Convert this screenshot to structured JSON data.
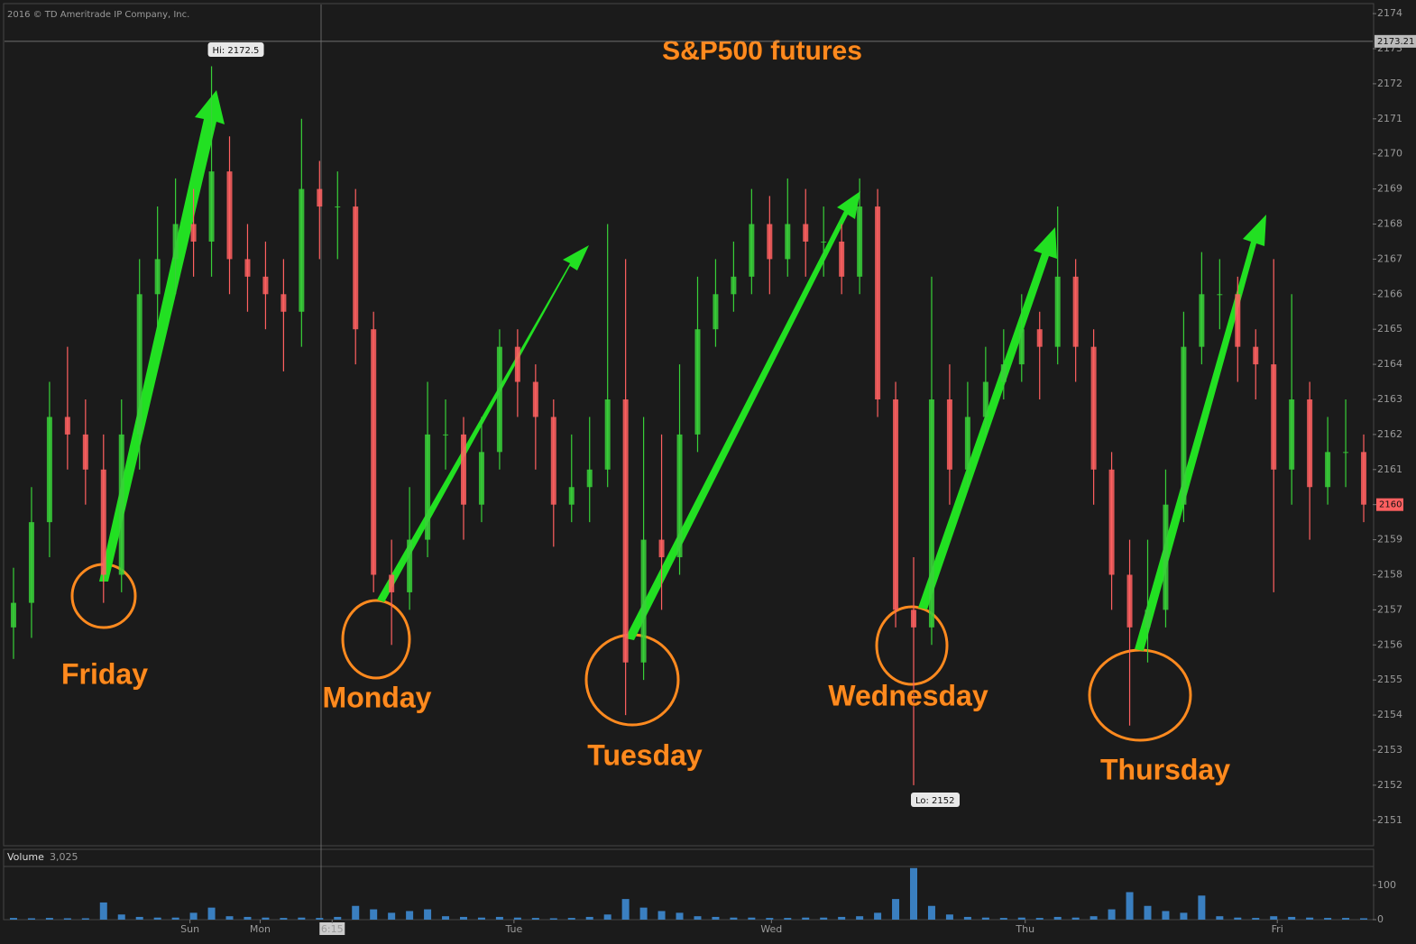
{
  "chart_data": {
    "type": "candlestick",
    "title": "S&P500 futures",
    "copyright": "2016 © TD Ameritrade IP Company, Inc.",
    "open": [
      2156.5,
      2157.2,
      2159.5,
      2162.5,
      2162.0,
      2161.0,
      2158.0,
      2162.0,
      2166.0,
      2167.0,
      2168.0,
      2167.5,
      2169.5,
      2167.0,
      2166.5,
      2166.0,
      2165.5,
      2169.0,
      2168.5,
      2168.5,
      2165.0,
      2158.0,
      2157.5,
      2159.0,
      2162.0,
      2162.0,
      2160.0,
      2161.5,
      2164.5,
      2163.5,
      2162.5,
      2160.0,
      2160.5,
      2161.0,
      2163.0,
      2155.5,
      2159.0,
      2158.5,
      2162.0,
      2165.0,
      2166.0,
      2166.5,
      2168.0,
      2167.0,
      2168.0,
      2167.5,
      2167.5,
      2166.5,
      2168.5,
      2163.0,
      2157.0,
      2156.5,
      2163.0,
      2161.0,
      2162.5,
      2163.5,
      2164.0,
      2165.0,
      2164.5,
      2166.5,
      2164.5,
      2161.0,
      2158.0,
      2156.5,
      2157.0,
      2160.0,
      2164.5,
      2166.0,
      2166.0,
      2164.5,
      2164.0,
      2161.0,
      2163.0,
      2160.5,
      2161.5,
      2161.5
    ],
    "high": [
      2158.2,
      2160.5,
      2163.5,
      2164.5,
      2163,
      2162,
      2163,
      2167,
      2168.5,
      2169.3,
      2169,
      2172.5,
      2170.5,
      2168,
      2167.5,
      2167,
      2171,
      2169.8,
      2169.5,
      2169,
      2165.5,
      2159,
      2160.5,
      2163.5,
      2163,
      2162.5,
      2162.5,
      2165,
      2165,
      2164,
      2163,
      2162,
      2162.5,
      2168,
      2167,
      2162.5,
      2162,
      2164,
      2166.5,
      2167,
      2167.5,
      2169,
      2168.8,
      2169.3,
      2169,
      2168.5,
      2168,
      2169.3,
      2169,
      2163.5,
      2158.5,
      2166.5,
      2164,
      2163.5,
      2164.5,
      2165,
      2166,
      2165.5,
      2168.5,
      2167,
      2165,
      2161.5,
      2159,
      2159,
      2161,
      2165.5,
      2167.2,
      2167,
      2166.5,
      2165,
      2167,
      2166,
      2163.5,
      2162.5,
      2163,
      2162
    ],
    "low": [
      2155.6,
      2156.2,
      2158.5,
      2161,
      2160,
      2157.2,
      2157.5,
      2161,
      2165,
      2166,
      2166.5,
      2166.5,
      2166,
      2165.5,
      2165,
      2163.8,
      2164.5,
      2167,
      2167,
      2164,
      2157.5,
      2156,
      2157,
      2158.5,
      2161,
      2159,
      2159.5,
      2161,
      2162.5,
      2161,
      2158.8,
      2159.5,
      2159.5,
      2160.5,
      2154,
      2155,
      2157,
      2158,
      2161.5,
      2164.5,
      2165.5,
      2166,
      2166,
      2166.5,
      2166.5,
      2166.5,
      2166,
      2166,
      2162.5,
      2156.5,
      2152,
      2156,
      2160,
      2160.5,
      2162,
      2163,
      2163.5,
      2163,
      2164,
      2163.5,
      2160,
      2157,
      2153.7,
      2155.5,
      2156.5,
      2159.5,
      2164,
      2165,
      2163.5,
      2163,
      2157.5,
      2160,
      2159,
      2160,
      2160.5,
      2159.5
    ],
    "close": [
      2157.2,
      2159.5,
      2162.5,
      2162.0,
      2161.0,
      2158.0,
      2162.0,
      2166.0,
      2167.0,
      2168.0,
      2167.5,
      2169.5,
      2167.0,
      2166.5,
      2166.0,
      2165.5,
      2169.0,
      2168.5,
      2168.5,
      2165.0,
      2158.0,
      2157.5,
      2159.0,
      2162.0,
      2162.0,
      2160.0,
      2161.5,
      2164.5,
      2163.5,
      2162.5,
      2160.0,
      2160.5,
      2161.0,
      2163.0,
      2155.5,
      2159.0,
      2158.5,
      2162.0,
      2165.0,
      2166.0,
      2166.5,
      2168.0,
      2167.0,
      2168.0,
      2167.5,
      2167.5,
      2166.5,
      2168.5,
      2163.0,
      2157.0,
      2156.5,
      2163.0,
      2161.0,
      2162.5,
      2163.5,
      2164.0,
      2165.0,
      2164.5,
      2166.5,
      2164.5,
      2161.0,
      2158.0,
      2156.5,
      2157.0,
      2160.0,
      2164.5,
      2166.0,
      2166.0,
      2164.5,
      2164.0,
      2161.0,
      2163.0,
      2160.5,
      2161.5,
      2161.5,
      2160.0
    ],
    "up_color": "#38d038",
    "down_color": "#ff6060",
    "ylim": [
      2150.3,
      2174.26
    ],
    "yticks": [
      2151,
      2152,
      2153,
      2154,
      2155,
      2156,
      2157,
      2158,
      2159,
      2160,
      2161,
      2162,
      2163,
      2164,
      2165,
      2166,
      2167,
      2168,
      2169,
      2170,
      2171,
      2172,
      2173,
      2174
    ],
    "cursor_price": 2173.21,
    "hi_label": "Hi: 2172.5",
    "lo_label": "Lo: 2152",
    "x_labels": [
      {
        "value": 9.8,
        "label": "Sun"
      },
      {
        "value": 13.7,
        "label": "Mon"
      },
      {
        "value": 17.7,
        "label": "6:15"
      },
      {
        "value": 27.8,
        "label": "Tue"
      },
      {
        "value": 42.1,
        "label": "Wed"
      },
      {
        "value": 56.2,
        "label": "Thu"
      },
      {
        "value": 70.2,
        "label": "Fri"
      }
    ],
    "annotations": [
      "Friday",
      "Monday",
      "Tuesday",
      "Wednesday",
      "Thursday"
    ],
    "volume": {
      "label": "Volume",
      "current": "3,025",
      "color": "#3a7fc0",
      "ylim": [
        0,
        152
      ],
      "yticks": [
        0,
        100
      ],
      "values": [
        5,
        4,
        5,
        4,
        4,
        50,
        15,
        8,
        6,
        6,
        20,
        35,
        10,
        8,
        6,
        5,
        6,
        5,
        8,
        40,
        30,
        20,
        25,
        30,
        10,
        8,
        6,
        8,
        6,
        5,
        4,
        5,
        8,
        15,
        60,
        35,
        25,
        20,
        10,
        8,
        6,
        6,
        5,
        5,
        6,
        6,
        8,
        10,
        20,
        60,
        150,
        40,
        15,
        8,
        6,
        5,
        6,
        5,
        8,
        6,
        10,
        30,
        80,
        40,
        25,
        20,
        70,
        10,
        6,
        5,
        10,
        8,
        6,
        5,
        5,
        4
      ]
    }
  }
}
